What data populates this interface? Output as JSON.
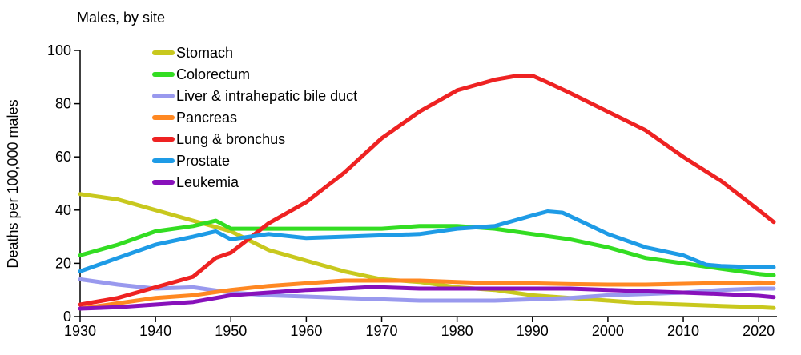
{
  "chart_data": {
    "type": "line",
    "title": "Males, by site",
    "ylabel": "Deaths per 100,000 males",
    "xlabel": "",
    "xlim": [
      1930,
      2022
    ],
    "ylim": [
      0,
      100
    ],
    "xticks": [
      1930,
      1940,
      1950,
      1960,
      1970,
      1980,
      1990,
      2000,
      2010,
      2020
    ],
    "yticks": [
      0,
      20,
      40,
      60,
      80,
      100
    ],
    "grid": false,
    "legend_position": "top-left",
    "series": [
      {
        "name": "Stomach",
        "color": "#c8c81e",
        "points": [
          [
            1930,
            46
          ],
          [
            1935,
            44
          ],
          [
            1940,
            40
          ],
          [
            1945,
            36
          ],
          [
            1950,
            32
          ],
          [
            1955,
            25
          ],
          [
            1960,
            21
          ],
          [
            1965,
            17
          ],
          [
            1970,
            14
          ],
          [
            1975,
            13
          ],
          [
            1980,
            11
          ],
          [
            1985,
            10
          ],
          [
            1990,
            8
          ],
          [
            1995,
            7
          ],
          [
            2000,
            6
          ],
          [
            2005,
            5
          ],
          [
            2010,
            4.5
          ],
          [
            2015,
            4
          ],
          [
            2020,
            3.5
          ],
          [
            2022,
            3.2
          ]
        ]
      },
      {
        "name": "Colorectum",
        "color": "#33dd22",
        "points": [
          [
            1930,
            23
          ],
          [
            1935,
            27
          ],
          [
            1940,
            32
          ],
          [
            1945,
            34
          ],
          [
            1948,
            36
          ],
          [
            1950,
            33
          ],
          [
            1955,
            33
          ],
          [
            1960,
            33
          ],
          [
            1965,
            33
          ],
          [
            1970,
            33
          ],
          [
            1975,
            34
          ],
          [
            1980,
            34
          ],
          [
            1985,
            33
          ],
          [
            1990,
            31
          ],
          [
            1995,
            29
          ],
          [
            2000,
            26
          ],
          [
            2005,
            22
          ],
          [
            2010,
            20
          ],
          [
            2015,
            18
          ],
          [
            2020,
            16
          ],
          [
            2022,
            15.5
          ]
        ]
      },
      {
        "name": "Liver & intrahepatic bile duct",
        "color": "#9999ee",
        "points": [
          [
            1930,
            14
          ],
          [
            1935,
            12
          ],
          [
            1940,
            10.5
          ],
          [
            1945,
            11
          ],
          [
            1950,
            9
          ],
          [
            1955,
            8
          ],
          [
            1960,
            7.5
          ],
          [
            1965,
            7
          ],
          [
            1970,
            6.5
          ],
          [
            1975,
            6
          ],
          [
            1980,
            6
          ],
          [
            1985,
            6
          ],
          [
            1990,
            6.5
          ],
          [
            1995,
            7
          ],
          [
            2000,
            8
          ],
          [
            2005,
            8.5
          ],
          [
            2010,
            9
          ],
          [
            2015,
            10
          ],
          [
            2020,
            10.5
          ],
          [
            2022,
            10.5
          ]
        ]
      },
      {
        "name": "Pancreas",
        "color": "#ff8822",
        "points": [
          [
            1930,
            3
          ],
          [
            1935,
            5
          ],
          [
            1940,
            7
          ],
          [
            1945,
            8
          ],
          [
            1950,
            10
          ],
          [
            1955,
            11.5
          ],
          [
            1960,
            12.5
          ],
          [
            1965,
            13.5
          ],
          [
            1970,
            13.5
          ],
          [
            1975,
            13.5
          ],
          [
            1980,
            13
          ],
          [
            1985,
            12.5
          ],
          [
            1990,
            12.5
          ],
          [
            1995,
            12.2
          ],
          [
            2000,
            12
          ],
          [
            2005,
            12
          ],
          [
            2010,
            12.3
          ],
          [
            2015,
            12.6
          ],
          [
            2020,
            12.8
          ],
          [
            2022,
            12.7
          ]
        ]
      },
      {
        "name": "Lung & bronchus",
        "color": "#ee2222",
        "points": [
          [
            1930,
            4.5
          ],
          [
            1935,
            7
          ],
          [
            1940,
            11
          ],
          [
            1945,
            15
          ],
          [
            1948,
            22
          ],
          [
            1950,
            24
          ],
          [
            1955,
            35
          ],
          [
            1960,
            43
          ],
          [
            1965,
            54
          ],
          [
            1970,
            67
          ],
          [
            1975,
            77
          ],
          [
            1980,
            85
          ],
          [
            1985,
            89
          ],
          [
            1988,
            90.5
          ],
          [
            1990,
            90.5
          ],
          [
            1992,
            88
          ],
          [
            1995,
            84
          ],
          [
            2000,
            77
          ],
          [
            2005,
            70
          ],
          [
            2010,
            60
          ],
          [
            2015,
            51
          ],
          [
            2020,
            40
          ],
          [
            2022,
            35.5
          ]
        ]
      },
      {
        "name": "Prostate",
        "color": "#1e9be6",
        "points": [
          [
            1930,
            17
          ],
          [
            1935,
            22
          ],
          [
            1940,
            27
          ],
          [
            1945,
            30
          ],
          [
            1948,
            32
          ],
          [
            1950,
            29
          ],
          [
            1955,
            31
          ],
          [
            1960,
            29.5
          ],
          [
            1965,
            30
          ],
          [
            1970,
            30.5
          ],
          [
            1975,
            31
          ],
          [
            1980,
            33
          ],
          [
            1985,
            34
          ],
          [
            1990,
            38
          ],
          [
            1992,
            39.5
          ],
          [
            1994,
            39
          ],
          [
            1997,
            35
          ],
          [
            2000,
            31
          ],
          [
            2005,
            26
          ],
          [
            2010,
            23
          ],
          [
            2013,
            19.5
          ],
          [
            2015,
            19
          ],
          [
            2020,
            18.5
          ],
          [
            2022,
            18.5
          ]
        ]
      },
      {
        "name": "Leukemia",
        "color": "#8811bb",
        "points": [
          [
            1930,
            3
          ],
          [
            1935,
            3.5
          ],
          [
            1940,
            4.5
          ],
          [
            1945,
            5.5
          ],
          [
            1950,
            8
          ],
          [
            1955,
            9
          ],
          [
            1960,
            10
          ],
          [
            1965,
            10.5
          ],
          [
            1968,
            11
          ],
          [
            1970,
            11
          ],
          [
            1975,
            10.5
          ],
          [
            1980,
            10.5
          ],
          [
            1985,
            10.5
          ],
          [
            1990,
            10.5
          ],
          [
            1995,
            10.5
          ],
          [
            2000,
            10
          ],
          [
            2005,
            9.5
          ],
          [
            2010,
            9
          ],
          [
            2015,
            8.5
          ],
          [
            2020,
            7.8
          ],
          [
            2022,
            7.3
          ]
        ]
      }
    ]
  }
}
